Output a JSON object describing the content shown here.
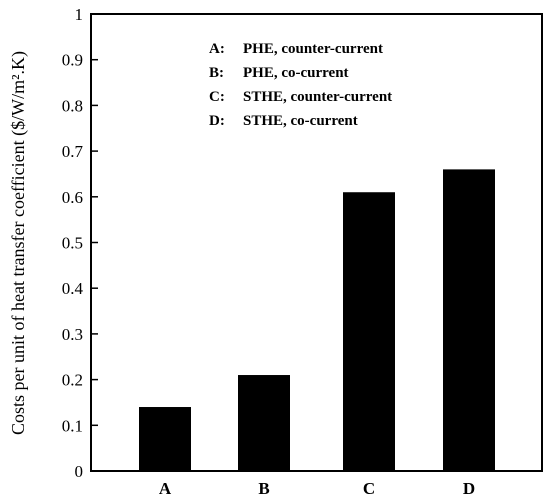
{
  "chart_data": {
    "type": "bar",
    "categories": [
      "A",
      "B",
      "C",
      "D"
    ],
    "values": [
      0.14,
      0.21,
      0.61,
      0.66
    ],
    "ylabel": "Costs per unit of heat transfer coefficient ($/W/m².K)",
    "xlabel": "",
    "ylim": [
      0,
      1
    ],
    "yticks": [
      "0",
      "0.1",
      "0.2",
      "0.3",
      "0.4",
      "0.5",
      "0.6",
      "0.7",
      "0.8",
      "0.9",
      "1"
    ],
    "bar_color": "#000000",
    "grid": false,
    "legend_position": "top-center",
    "legend": [
      {
        "key": "A:",
        "text": "PHE, counter-current"
      },
      {
        "key": "B:",
        "text": "PHE, co-current"
      },
      {
        "key": "C:",
        "text": "STHE, counter-current"
      },
      {
        "key": "D:",
        "text": "STHE, co-current"
      }
    ]
  }
}
